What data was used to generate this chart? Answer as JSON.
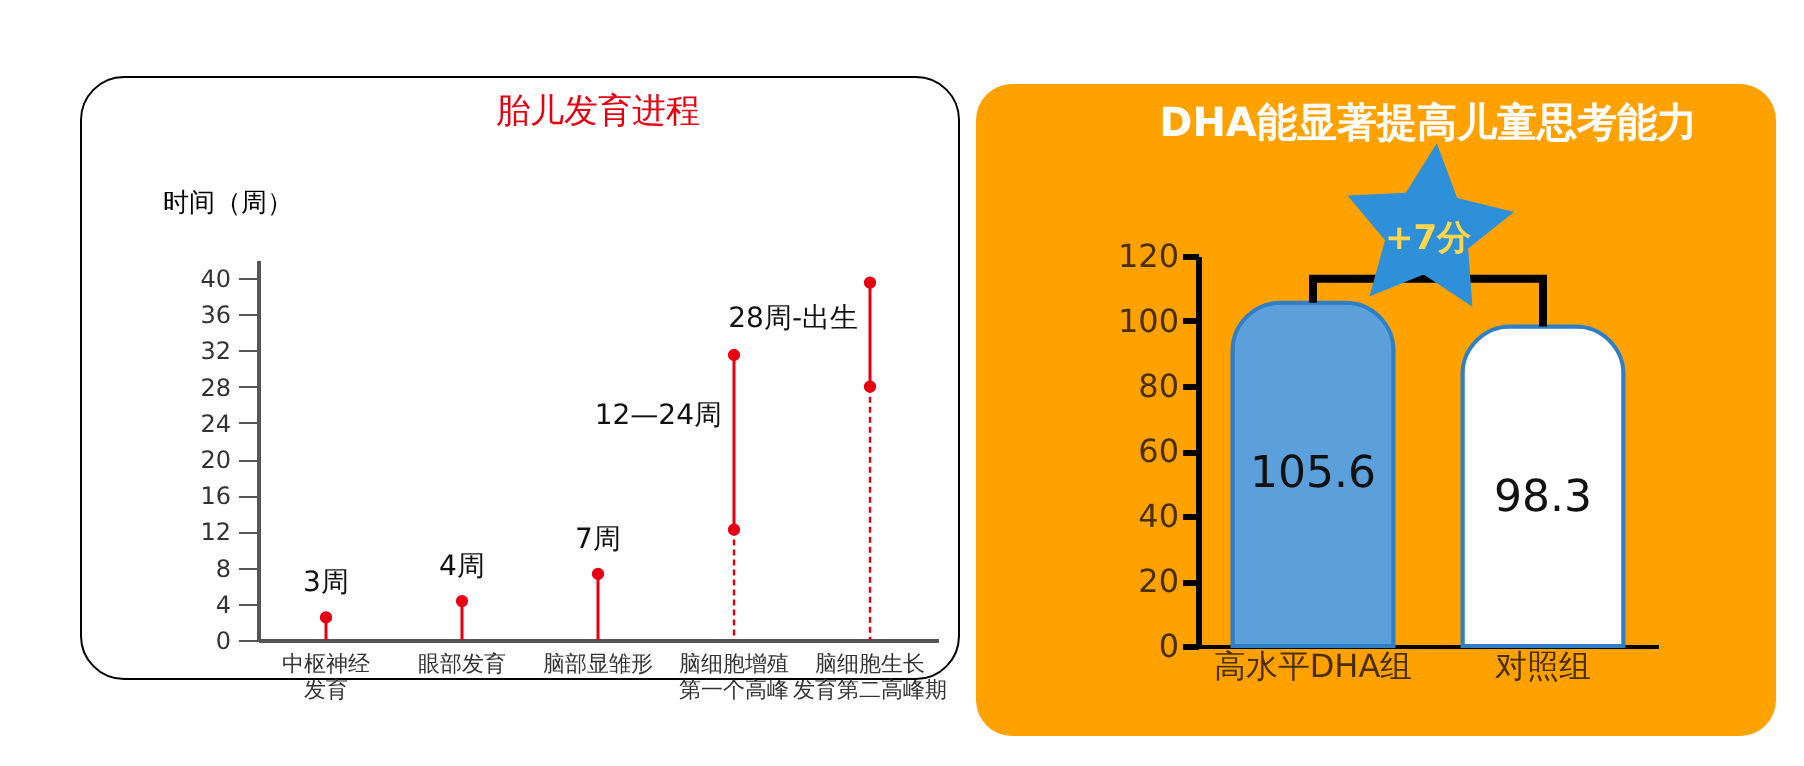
{
  "chart_data": [
    {
      "type": "lollipop",
      "title": "胎儿发育进程",
      "ylabel": "时间（周）",
      "categories": [
        "中枢神经发育",
        "眼部发育",
        "脑部显雏形",
        "脑细胞增殖第一个高峰",
        "脑细胞生长发育第二高峰期"
      ],
      "ylim": [
        0,
        42
      ],
      "yticks": [
        0,
        4,
        8,
        12,
        16,
        20,
        24,
        28,
        32,
        36,
        40
      ],
      "marker": "circle",
      "series": [
        {
          "type": "lollipop",
          "color": "#e60012",
          "values": [
            2.5,
            4.3,
            7.3,
            31.5,
            39.5
          ]
        },
        {
          "type": "scatter",
          "color": "#e60012",
          "values": [
            null,
            null,
            null,
            12.2,
            28
          ]
        }
      ],
      "annotations": [
        "3周",
        "4周",
        "7周",
        "12—24周",
        "28周-出生"
      ]
    },
    {
      "type": "bar",
      "title": "DHA能显著提高儿童思考能力",
      "categories": [
        "高水平DHA组",
        "对照组"
      ],
      "values": [
        105.6,
        98.3
      ],
      "colors": [
        "#5b9fdb",
        "#ffffff"
      ],
      "ylim": [
        0,
        120
      ],
      "yticks": [
        0,
        20,
        40,
        60,
        80,
        100,
        120
      ],
      "data_labels": true,
      "annotations": [
        "+7分"
      ]
    }
  ]
}
